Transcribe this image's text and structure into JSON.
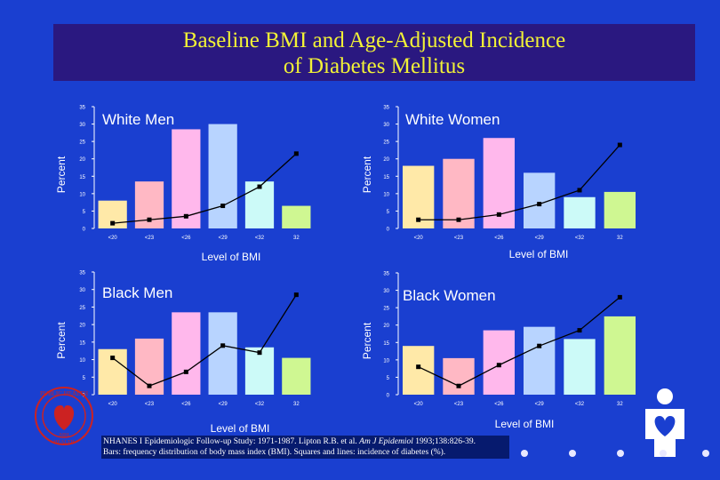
{
  "title": {
    "line1": "Baseline BMI and Age-Adjusted Incidence",
    "line2": "of Diabetes Mellitus"
  },
  "chart_data": [
    {
      "type": "bar",
      "title": "White Men",
      "ylabel": "Percent",
      "xlabel": "Level of BMI",
      "ylim": [
        0,
        35
      ],
      "yticks": [
        "0",
        "5",
        "10",
        "15",
        "20",
        "25",
        "30",
        "35"
      ],
      "categories": [
        "<20",
        "<23",
        "<26",
        "<29",
        "<32",
        "32"
      ],
      "series": [
        {
          "name": "Bars: frequency distribution of body mass index (BMI)",
          "kind": "bar",
          "values": [
            8,
            13.5,
            28.5,
            30,
            13.5,
            6.5
          ]
        },
        {
          "name": "Squares and lines: incidence of diabetes (%)",
          "kind": "line",
          "values": [
            1.5,
            2.5,
            3.5,
            6.5,
            12,
            21.5
          ]
        }
      ]
    },
    {
      "type": "bar",
      "title": "White Women",
      "ylabel": "Percent",
      "xlabel": "Level of BMI",
      "ylim": [
        0,
        35
      ],
      "yticks": [
        "0",
        "5",
        "10",
        "15",
        "20",
        "25",
        "30",
        "35"
      ],
      "categories": [
        "<20",
        "<23",
        "<26",
        "<29",
        "<32",
        "32"
      ],
      "series": [
        {
          "name": "Bars: frequency distribution of body mass index (BMI)",
          "kind": "bar",
          "values": [
            18,
            20,
            26,
            16,
            9,
            10.5
          ]
        },
        {
          "name": "Squares and lines: incidence of diabetes (%)",
          "kind": "line",
          "values": [
            2.5,
            2.5,
            4,
            7,
            11,
            24
          ]
        }
      ]
    },
    {
      "type": "bar",
      "title": "Black Men",
      "ylabel": "Percent",
      "xlabel": "Level of BMI",
      "ylim": [
        0,
        35
      ],
      "yticks": [
        "0",
        "5",
        "10",
        "15",
        "20",
        "25",
        "30",
        "35"
      ],
      "categories": [
        "<20",
        "<23",
        "<26",
        "<29",
        "<32",
        "32"
      ],
      "series": [
        {
          "name": "Bars: frequency distribution of body mass index (BMI)",
          "kind": "bar",
          "values": [
            13,
            16,
            23.5,
            23.5,
            13.5,
            10.5
          ]
        },
        {
          "name": "Squares and lines: incidence of diabetes (%)",
          "kind": "line",
          "values": [
            10.5,
            2.5,
            6.5,
            14,
            12,
            28.5
          ]
        }
      ]
    },
    {
      "type": "bar",
      "title": "Black Women",
      "ylabel": "Percent",
      "xlabel": "Level of BMI",
      "ylim": [
        0,
        35
      ],
      "yticks": [
        "0",
        "5",
        "10",
        "15",
        "20",
        "25",
        "30",
        "35"
      ],
      "categories": [
        "<20",
        "<23",
        "<26",
        "<29",
        "<32",
        "32"
      ],
      "series": [
        {
          "name": "Bars: frequency distribution of body mass index (BMI)",
          "kind": "bar",
          "values": [
            14,
            10.5,
            18.5,
            19.5,
            16,
            22.5
          ]
        },
        {
          "name": "Squares and lines: incidence of diabetes (%)",
          "kind": "line",
          "values": [
            8,
            2.5,
            8.5,
            14,
            18.5,
            28
          ]
        }
      ]
    }
  ],
  "bar_colors": [
    "#ffe9a8",
    "#ffb8c4",
    "#ffb8ec",
    "#b8d4ff",
    "#ccfaf8",
    "#cff792"
  ],
  "line_color": "#000000",
  "reference": {
    "line1_before": "NHANES I Epidemiologic Follow-up Study: 1971-1987. Lipton R.B. et al.",
    "journal": "Am J Epidemiol",
    "line1_after": "1993;138:826-39.",
    "line2": "Bars: frequency distribution of body mass index (BMI). Squares and lines: incidence of diabetes (%)."
  },
  "seal": {
    "text_top": "PUBLIC HEALTH",
    "text_bottom": "NIH",
    "text_word": "HEALTH"
  },
  "icons": {
    "seal": "hhs-seal-icon",
    "logo": "heart-person-icon"
  }
}
